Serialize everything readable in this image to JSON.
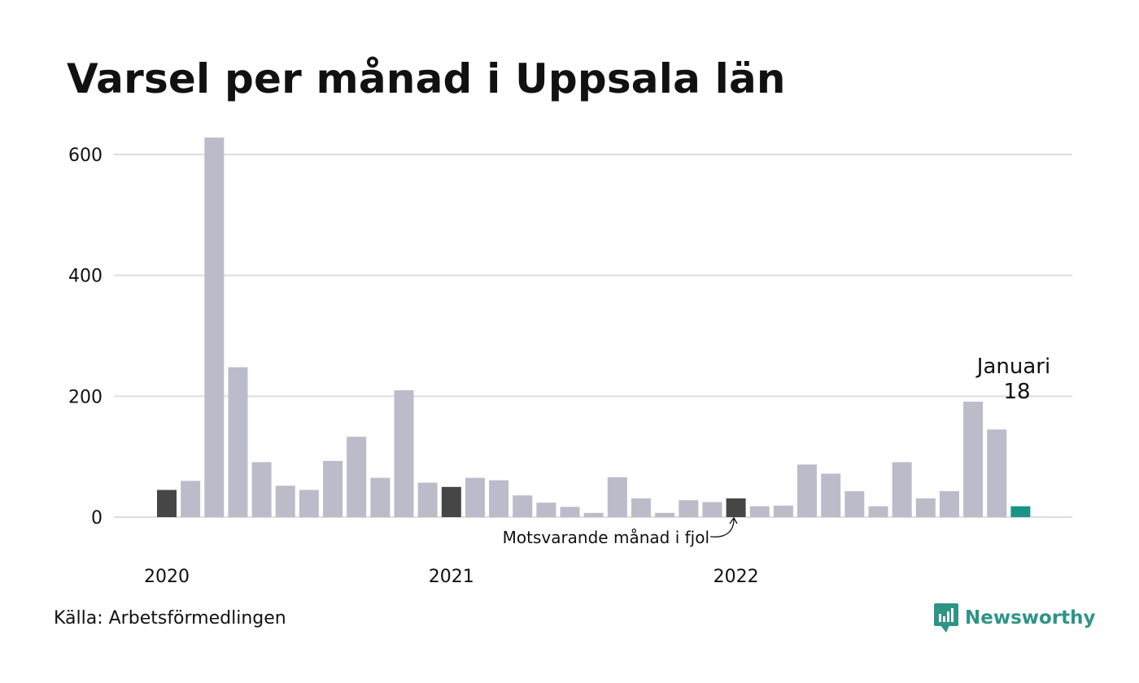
{
  "header": {
    "title": "Varsel per månad i Uppsala län"
  },
  "footer": {
    "source": "Källa: Arbetsförmedlingen"
  },
  "brand": {
    "name": "Newsworthy",
    "icon": "newsworthy-chart-icon",
    "color": "#2e9486"
  },
  "colors": {
    "bar": "#bcbbca",
    "same_month_last_year": "#464646",
    "current": "#1a9486",
    "grid": "#dedede"
  },
  "annotations": {
    "current_month": "Januari",
    "current_value": "18",
    "last_year_note": "Motsvarande månad i fjol"
  },
  "chart_data": {
    "type": "bar",
    "title": "Varsel per månad i Uppsala län",
    "xlabel": "",
    "ylabel": "",
    "ylim": [
      0,
      660
    ],
    "yticks": [
      0,
      200,
      400,
      600
    ],
    "xtick_labels": [
      {
        "label": "2020",
        "index": 0
      },
      {
        "label": "2021",
        "index": 12
      },
      {
        "label": "2022",
        "index": 24
      }
    ],
    "grid": true,
    "categories": [
      "2020-01",
      "2020-02",
      "2020-03",
      "2020-04",
      "2020-05",
      "2020-06",
      "2020-07",
      "2020-08",
      "2020-09",
      "2020-10",
      "2020-11",
      "2020-12",
      "2021-01",
      "2021-02",
      "2021-03",
      "2021-04",
      "2021-05",
      "2021-06",
      "2021-07",
      "2021-08",
      "2021-09",
      "2021-10",
      "2021-11",
      "2021-12",
      "2022-01",
      "2022-02",
      "2022-03",
      "2022-04",
      "2022-05",
      "2022-06",
      "2022-07",
      "2022-08",
      "2022-09",
      "2022-10",
      "2022-11",
      "2022-12",
      "2023-01"
    ],
    "values": [
      45,
      60,
      628,
      248,
      91,
      52,
      45,
      93,
      133,
      65,
      210,
      57,
      50,
      65,
      61,
      36,
      24,
      17,
      7,
      66,
      31,
      7,
      28,
      25,
      31,
      18,
      19,
      87,
      72,
      43,
      18,
      91,
      31,
      43,
      191,
      145,
      18
    ],
    "highlight": {
      "same_month_last_year": [
        0,
        12,
        24
      ],
      "current": 36
    }
  }
}
